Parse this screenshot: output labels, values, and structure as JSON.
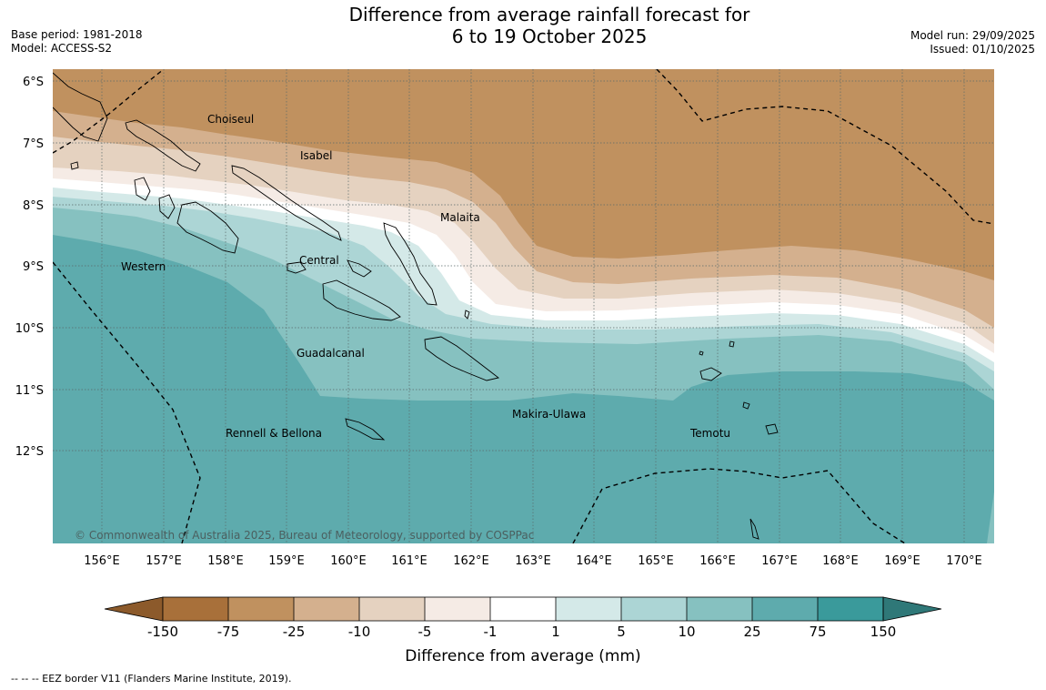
{
  "title": {
    "line1": "Difference from average rainfall forecast for",
    "line2": "6 to 19 October 2025"
  },
  "meta_left": {
    "base_period": "Base period: 1981-2018",
    "model": "Model: ACCESS-S2"
  },
  "meta_right": {
    "model_run": "Model run: 29/09/2025",
    "issued": "Issued: 01/10/2025"
  },
  "map": {
    "lat_labels": [
      "6°S",
      "7°S",
      "8°S",
      "9°S",
      "10°S",
      "11°S",
      "12°S"
    ],
    "lon_labels": [
      "156°E",
      "157°E",
      "158°E",
      "159°E",
      "160°E",
      "161°E",
      "162°E",
      "163°E",
      "164°E",
      "165°E",
      "166°E",
      "167°E",
      "168°E",
      "169°E",
      "170°E"
    ],
    "region_labels": [
      "Choiseul",
      "Isabel",
      "Malaita",
      "Western",
      "Central",
      "Guadalcanal",
      "Makira-Ulawa",
      "Rennell & Bellona",
      "Temotu"
    ],
    "copyright": "© Commonwealth of Australia 2025, Bureau of Meteorology, supported by COSPPac"
  },
  "colorbar": {
    "ticks": [
      "-150",
      "-75",
      "-25",
      "-10",
      "-5",
      "-1",
      "1",
      "5",
      "10",
      "25",
      "75",
      "150"
    ],
    "colors": [
      "#a8703a",
      "#c0915f",
      "#d4b08e",
      "#e5d2c0",
      "#f5ebe5",
      "#ffffff",
      "#d4e9e8",
      "#acd5d5",
      "#86c1c0",
      "#5eabad",
      "#3a9a9b"
    ],
    "under_color": "#8c5a2b",
    "over_color": "#2f7878",
    "label": "Difference from average (mm)"
  },
  "footer": "--  --  -- EEZ border V11 (Flanders Marine Institute, 2019)."
}
